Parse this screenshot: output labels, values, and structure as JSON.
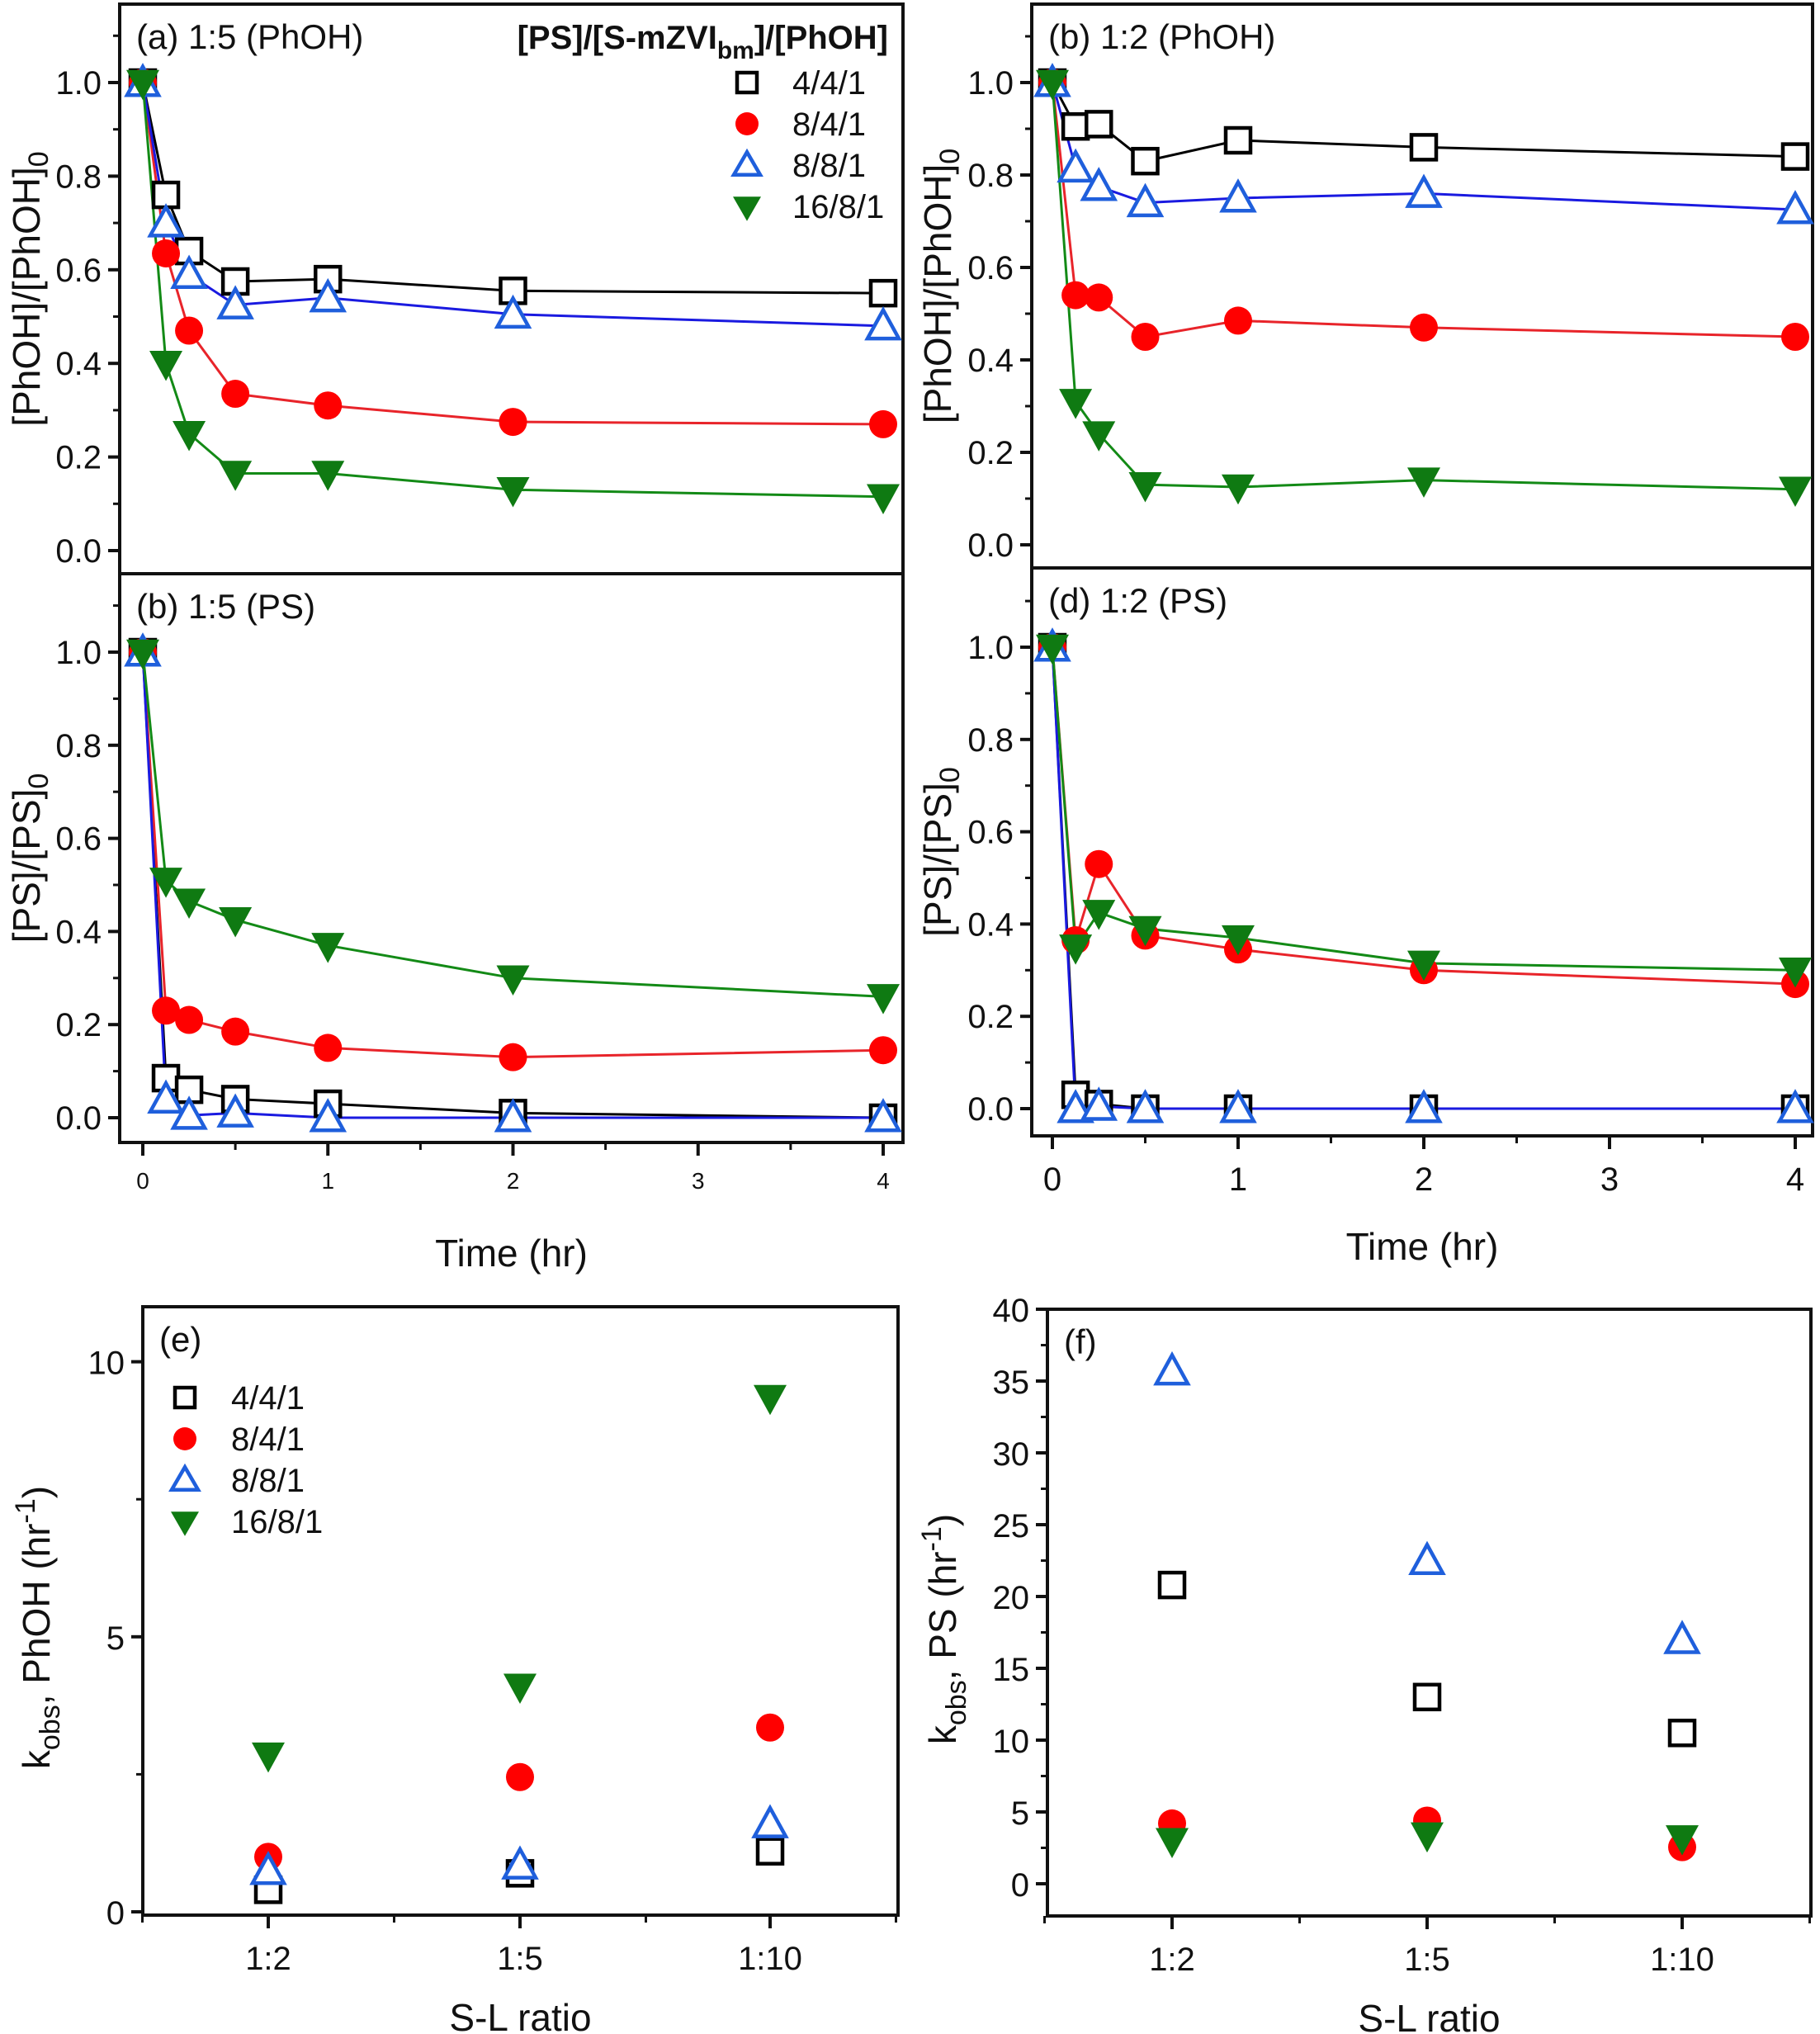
{
  "figure": {
    "legend_title_main": "[PS]/[S-mZVI",
    "legend_title_sub": "bm",
    "legend_title_tail": "]/[PhOH]"
  },
  "series_styles": [
    {
      "name": "4/4/1",
      "marker": "open-square",
      "color": "#000000",
      "line_color": "#000000"
    },
    {
      "name": "8/4/1",
      "marker": "filled-circle",
      "color": "#ff0000",
      "line_color": "#e8242a"
    },
    {
      "name": "8/8/1",
      "marker": "open-triangle-up",
      "color": "#1f5fdc",
      "line_color": "#1a1ae0"
    },
    {
      "name": "16/8/1",
      "marker": "filled-triangle-down",
      "color": "#0f7a12",
      "line_color": "#138a16"
    }
  ],
  "chart_data": [
    {
      "id": "a",
      "type": "line",
      "title": "(a) 1:5 (PhOH)",
      "xlabel": "",
      "ylabel": "[PhOH]/[PhOH]0",
      "xlim": [
        -0.15,
        4.1
      ],
      "ylim": [
        -0.05,
        1.17
      ],
      "yticks": [
        "0.0",
        "0.2",
        "0.4",
        "0.6",
        "0.8",
        "1.0"
      ],
      "xticks": [],
      "x": [
        0,
        0.125,
        0.25,
        0.5,
        1,
        2,
        4
      ],
      "legend": "top-right",
      "series": [
        {
          "name": "4/4/1",
          "values": [
            1.0,
            0.76,
            0.64,
            0.575,
            0.58,
            0.555,
            0.55
          ]
        },
        {
          "name": "8/4/1",
          "values": [
            1.0,
            0.635,
            0.47,
            0.335,
            0.31,
            0.275,
            0.27
          ]
        },
        {
          "name": "8/8/1",
          "values": [
            1.0,
            0.7,
            0.59,
            0.525,
            0.54,
            0.505,
            0.48
          ]
        },
        {
          "name": "16/8/1",
          "values": [
            1.0,
            0.4,
            0.25,
            0.165,
            0.165,
            0.13,
            0.115
          ]
        }
      ]
    },
    {
      "id": "b_phoh",
      "type": "line",
      "title": "(b) 1:2 (PhOH)",
      "xlabel": "",
      "ylabel": "[PhOH]/[PhOH]0",
      "xlim": [
        -0.15,
        4.1
      ],
      "ylim": [
        -0.05,
        1.17
      ],
      "yticks": [
        "0.0",
        "0.2",
        "0.4",
        "0.6",
        "0.8",
        "1.0"
      ],
      "xticks": [],
      "x": [
        0,
        0.125,
        0.25,
        0.5,
        1,
        2,
        4
      ],
      "series": [
        {
          "name": "4/4/1",
          "values": [
            1.0,
            0.905,
            0.91,
            0.83,
            0.875,
            0.86,
            0.84
          ]
        },
        {
          "name": "8/4/1",
          "values": [
            1.0,
            0.54,
            0.535,
            0.45,
            0.485,
            0.47,
            0.45
          ]
        },
        {
          "name": "8/8/1",
          "values": [
            1.0,
            0.815,
            0.775,
            0.74,
            0.75,
            0.76,
            0.725
          ]
        },
        {
          "name": "16/8/1",
          "values": [
            1.0,
            0.31,
            0.24,
            0.13,
            0.125,
            0.14,
            0.12
          ]
        }
      ]
    },
    {
      "id": "b_ps",
      "type": "line",
      "title": "(b) 1:5 (PS)",
      "xlabel": "Time (hr)",
      "ylabel": "[PS]/[PS]0",
      "xlim": [
        -0.15,
        4.1
      ],
      "ylim": [
        -0.05,
        1.17
      ],
      "yticks": [
        "0.0",
        "0.2",
        "0.4",
        "0.6",
        "0.8",
        "1.0"
      ],
      "xticks": [
        "0",
        "1",
        "2",
        "3",
        "4"
      ],
      "x": [
        0,
        0.125,
        0.25,
        0.5,
        1,
        2,
        4
      ],
      "series": [
        {
          "name": "4/4/1",
          "values": [
            1.0,
            0.085,
            0.06,
            0.04,
            0.03,
            0.01,
            0.0
          ]
        },
        {
          "name": "8/4/1",
          "values": [
            1.0,
            0.23,
            0.21,
            0.185,
            0.15,
            0.13,
            0.145
          ]
        },
        {
          "name": "8/8/1",
          "values": [
            1.0,
            0.04,
            0.005,
            0.01,
            0.0,
            0.0,
            0.0
          ]
        },
        {
          "name": "16/8/1",
          "values": [
            1.0,
            0.51,
            0.465,
            0.425,
            0.37,
            0.3,
            0.26
          ]
        }
      ]
    },
    {
      "id": "d",
      "type": "line",
      "title": "(d) 1:2 (PS)",
      "xlabel": "Time (hr)",
      "ylabel": "[PS]/[PS]0",
      "xlim": [
        -0.15,
        4.1
      ],
      "ylim": [
        -0.05,
        1.17
      ],
      "yticks": [
        "0.0",
        "0.2",
        "0.4",
        "0.6",
        "0.8",
        "1.0"
      ],
      "xticks": [
        "0",
        "1",
        "2",
        "3",
        "4"
      ],
      "x": [
        0,
        0.125,
        0.25,
        0.5,
        1,
        2,
        4
      ],
      "series": [
        {
          "name": "4/4/1",
          "values": [
            1.0,
            0.03,
            0.01,
            0.0,
            0.0,
            0.0,
            0.0
          ]
        },
        {
          "name": "8/4/1",
          "values": [
            1.0,
            0.365,
            0.53,
            0.375,
            0.345,
            0.3,
            0.27
          ]
        },
        {
          "name": "8/8/1",
          "values": [
            1.0,
            0.0,
            0.005,
            0.0,
            0.0,
            0.0,
            0.0
          ]
        },
        {
          "name": "16/8/1",
          "values": [
            1.0,
            0.35,
            0.425,
            0.39,
            0.37,
            0.315,
            0.3
          ]
        }
      ]
    },
    {
      "id": "e",
      "type": "scatter",
      "title": "(e)",
      "xlabel": "S-L ratio",
      "ylabel_main": "k",
      "ylabel_sub": "obs",
      "ylabel_tail": ", PhOH (hr",
      "ylabel_sup": "-1",
      "ylabel_close": ")",
      "categories": [
        "1:2",
        "1:5",
        "1:10"
      ],
      "ylim": [
        0,
        11
      ],
      "yticks": [
        "0",
        "5",
        "10"
      ],
      "legend": "top-left",
      "series": [
        {
          "name": "4/4/1",
          "values": [
            0.4,
            0.7,
            1.1
          ]
        },
        {
          "name": "8/4/1",
          "values": [
            1.0,
            2.45,
            3.35
          ]
        },
        {
          "name": "8/8/1",
          "values": [
            0.75,
            0.85,
            1.6
          ]
        },
        {
          "name": "16/8/1",
          "values": [
            2.85,
            4.1,
            9.35
          ]
        }
      ]
    },
    {
      "id": "f",
      "type": "scatter",
      "title": "(f)",
      "xlabel": "S-L ratio",
      "ylabel_main": "k",
      "ylabel_sub": "obs",
      "ylabel_tail": ", PS (hr",
      "ylabel_sup": "-1",
      "ylabel_close": ")",
      "categories": [
        "1:2",
        "1:5",
        "1:10"
      ],
      "ylim": [
        -2.5,
        40
      ],
      "yticks": [
        "0",
        "5",
        "10",
        "15",
        "20",
        "25",
        "30",
        "35",
        "40"
      ],
      "series": [
        {
          "name": "4/4/1",
          "values": [
            20.8,
            13.0,
            10.5
          ]
        },
        {
          "name": "8/4/1",
          "values": [
            4.2,
            4.4,
            2.55
          ]
        },
        {
          "name": "8/8/1",
          "values": [
            35.7,
            22.5,
            17.0
          ]
        },
        {
          "name": "16/8/1",
          "values": [
            3.0,
            3.4,
            3.2
          ]
        }
      ]
    }
  ]
}
